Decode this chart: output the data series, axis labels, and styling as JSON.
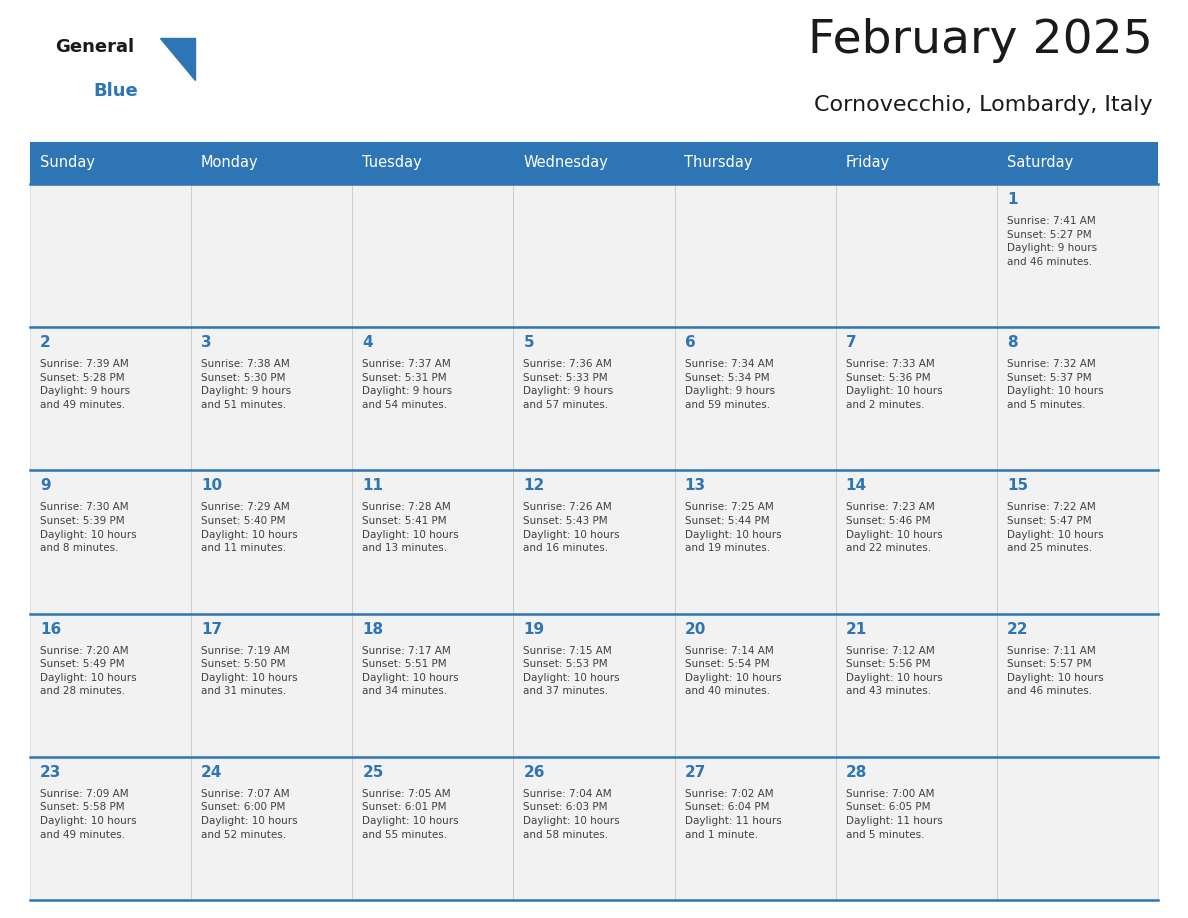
{
  "title": "February 2025",
  "subtitle": "Cornovecchio, Lombardy, Italy",
  "days_of_week": [
    "Sunday",
    "Monday",
    "Tuesday",
    "Wednesday",
    "Thursday",
    "Friday",
    "Saturday"
  ],
  "header_bg": "#2E75B6",
  "header_text": "#FFFFFF",
  "cell_bg": "#F2F2F2",
  "day_number_color": "#2E75B6",
  "text_color": "#404040",
  "border_color": "#2E75B6",
  "logo_blue_color": "#2E75B6",
  "weeks": [
    [
      {
        "day": null,
        "info": null
      },
      {
        "day": null,
        "info": null
      },
      {
        "day": null,
        "info": null
      },
      {
        "day": null,
        "info": null
      },
      {
        "day": null,
        "info": null
      },
      {
        "day": null,
        "info": null
      },
      {
        "day": 1,
        "info": "Sunrise: 7:41 AM\nSunset: 5:27 PM\nDaylight: 9 hours\nand 46 minutes."
      }
    ],
    [
      {
        "day": 2,
        "info": "Sunrise: 7:39 AM\nSunset: 5:28 PM\nDaylight: 9 hours\nand 49 minutes."
      },
      {
        "day": 3,
        "info": "Sunrise: 7:38 AM\nSunset: 5:30 PM\nDaylight: 9 hours\nand 51 minutes."
      },
      {
        "day": 4,
        "info": "Sunrise: 7:37 AM\nSunset: 5:31 PM\nDaylight: 9 hours\nand 54 minutes."
      },
      {
        "day": 5,
        "info": "Sunrise: 7:36 AM\nSunset: 5:33 PM\nDaylight: 9 hours\nand 57 minutes."
      },
      {
        "day": 6,
        "info": "Sunrise: 7:34 AM\nSunset: 5:34 PM\nDaylight: 9 hours\nand 59 minutes."
      },
      {
        "day": 7,
        "info": "Sunrise: 7:33 AM\nSunset: 5:36 PM\nDaylight: 10 hours\nand 2 minutes."
      },
      {
        "day": 8,
        "info": "Sunrise: 7:32 AM\nSunset: 5:37 PM\nDaylight: 10 hours\nand 5 minutes."
      }
    ],
    [
      {
        "day": 9,
        "info": "Sunrise: 7:30 AM\nSunset: 5:39 PM\nDaylight: 10 hours\nand 8 minutes."
      },
      {
        "day": 10,
        "info": "Sunrise: 7:29 AM\nSunset: 5:40 PM\nDaylight: 10 hours\nand 11 minutes."
      },
      {
        "day": 11,
        "info": "Sunrise: 7:28 AM\nSunset: 5:41 PM\nDaylight: 10 hours\nand 13 minutes."
      },
      {
        "day": 12,
        "info": "Sunrise: 7:26 AM\nSunset: 5:43 PM\nDaylight: 10 hours\nand 16 minutes."
      },
      {
        "day": 13,
        "info": "Sunrise: 7:25 AM\nSunset: 5:44 PM\nDaylight: 10 hours\nand 19 minutes."
      },
      {
        "day": 14,
        "info": "Sunrise: 7:23 AM\nSunset: 5:46 PM\nDaylight: 10 hours\nand 22 minutes."
      },
      {
        "day": 15,
        "info": "Sunrise: 7:22 AM\nSunset: 5:47 PM\nDaylight: 10 hours\nand 25 minutes."
      }
    ],
    [
      {
        "day": 16,
        "info": "Sunrise: 7:20 AM\nSunset: 5:49 PM\nDaylight: 10 hours\nand 28 minutes."
      },
      {
        "day": 17,
        "info": "Sunrise: 7:19 AM\nSunset: 5:50 PM\nDaylight: 10 hours\nand 31 minutes."
      },
      {
        "day": 18,
        "info": "Sunrise: 7:17 AM\nSunset: 5:51 PM\nDaylight: 10 hours\nand 34 minutes."
      },
      {
        "day": 19,
        "info": "Sunrise: 7:15 AM\nSunset: 5:53 PM\nDaylight: 10 hours\nand 37 minutes."
      },
      {
        "day": 20,
        "info": "Sunrise: 7:14 AM\nSunset: 5:54 PM\nDaylight: 10 hours\nand 40 minutes."
      },
      {
        "day": 21,
        "info": "Sunrise: 7:12 AM\nSunset: 5:56 PM\nDaylight: 10 hours\nand 43 minutes."
      },
      {
        "day": 22,
        "info": "Sunrise: 7:11 AM\nSunset: 5:57 PM\nDaylight: 10 hours\nand 46 minutes."
      }
    ],
    [
      {
        "day": 23,
        "info": "Sunrise: 7:09 AM\nSunset: 5:58 PM\nDaylight: 10 hours\nand 49 minutes."
      },
      {
        "day": 24,
        "info": "Sunrise: 7:07 AM\nSunset: 6:00 PM\nDaylight: 10 hours\nand 52 minutes."
      },
      {
        "day": 25,
        "info": "Sunrise: 7:05 AM\nSunset: 6:01 PM\nDaylight: 10 hours\nand 55 minutes."
      },
      {
        "day": 26,
        "info": "Sunrise: 7:04 AM\nSunset: 6:03 PM\nDaylight: 10 hours\nand 58 minutes."
      },
      {
        "day": 27,
        "info": "Sunrise: 7:02 AM\nSunset: 6:04 PM\nDaylight: 11 hours\nand 1 minute."
      },
      {
        "day": 28,
        "info": "Sunrise: 7:00 AM\nSunset: 6:05 PM\nDaylight: 11 hours\nand 5 minutes."
      },
      {
        "day": null,
        "info": null
      }
    ]
  ]
}
